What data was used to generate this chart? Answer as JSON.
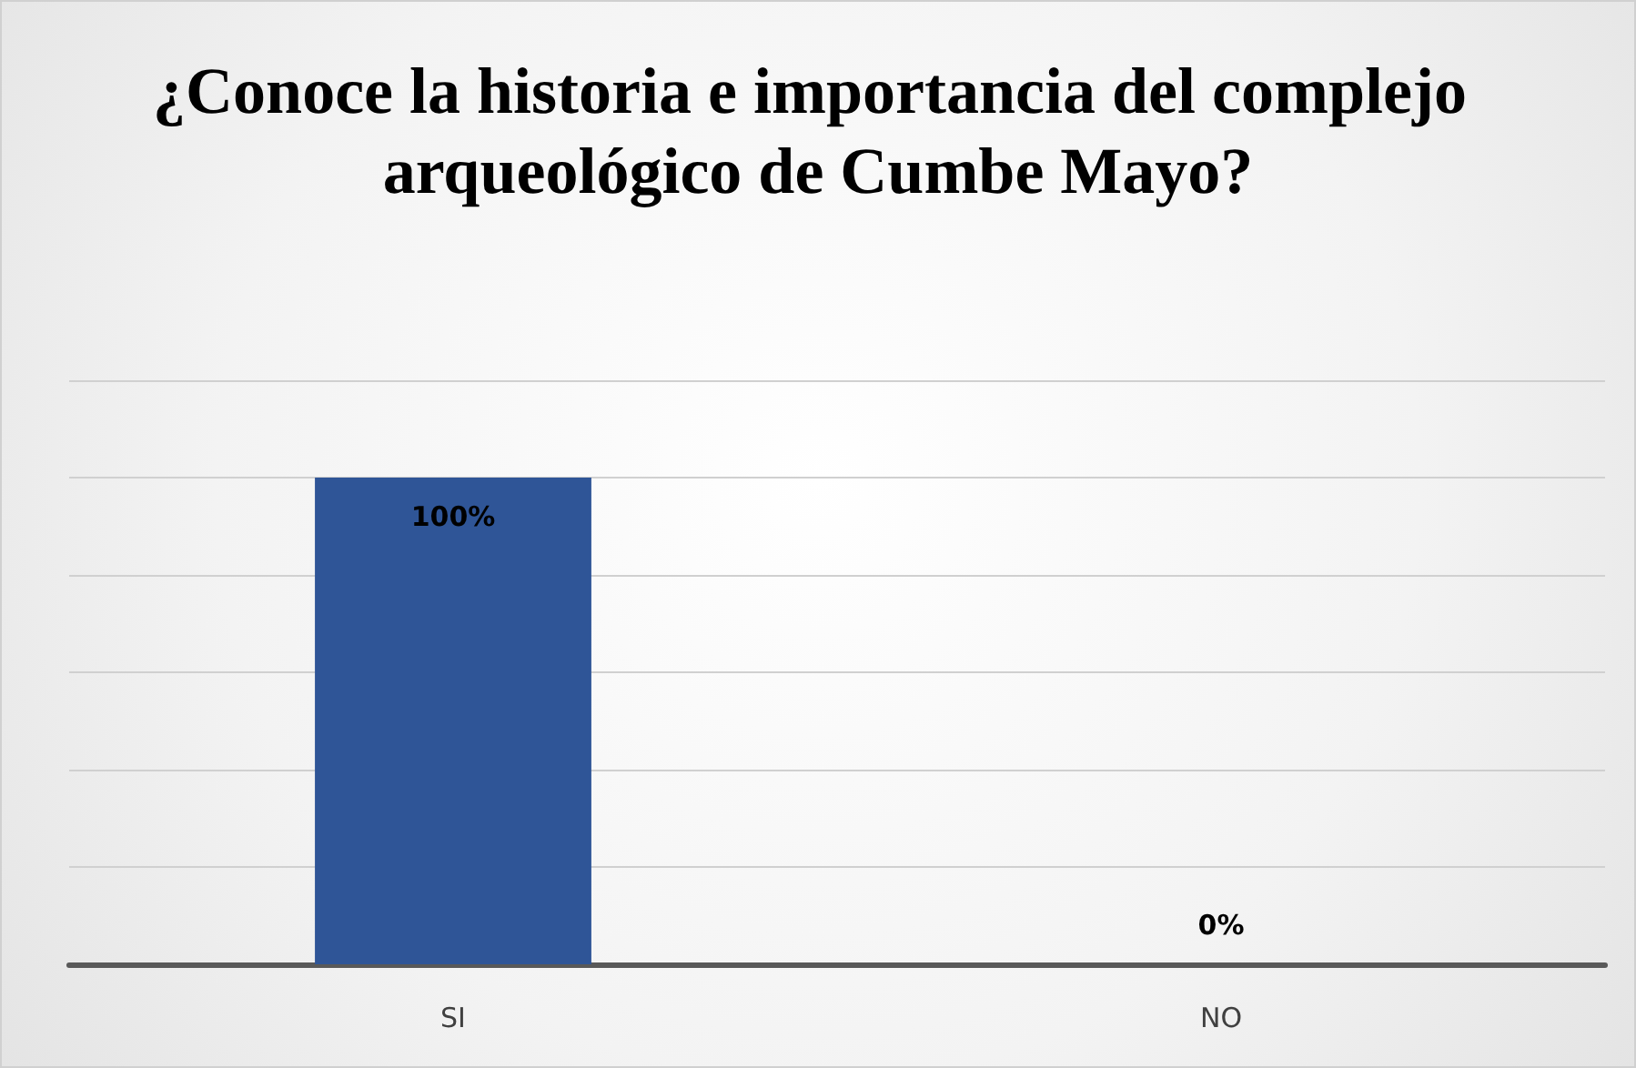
{
  "chart_data": {
    "type": "bar",
    "title": "¿Conoce la historia e importancia del complejo arqueológico de Cumbe Mayo?",
    "categories": [
      "SI",
      "NO"
    ],
    "values": [
      100,
      0
    ],
    "value_labels": [
      "100%",
      "0%"
    ],
    "color": "#2f5597",
    "ylim": [
      0,
      120
    ],
    "yticks": [
      {
        "value": 0,
        "label": null
      },
      {
        "value": 20,
        "label": null
      },
      {
        "value": 40,
        "label": null
      },
      {
        "value": 60,
        "label": null
      },
      {
        "value": 80,
        "label": null
      },
      {
        "value": 100,
        "label": null
      },
      {
        "value": 120,
        "label": null
      }
    ],
    "grid": "y",
    "tick_labels": "x"
  }
}
